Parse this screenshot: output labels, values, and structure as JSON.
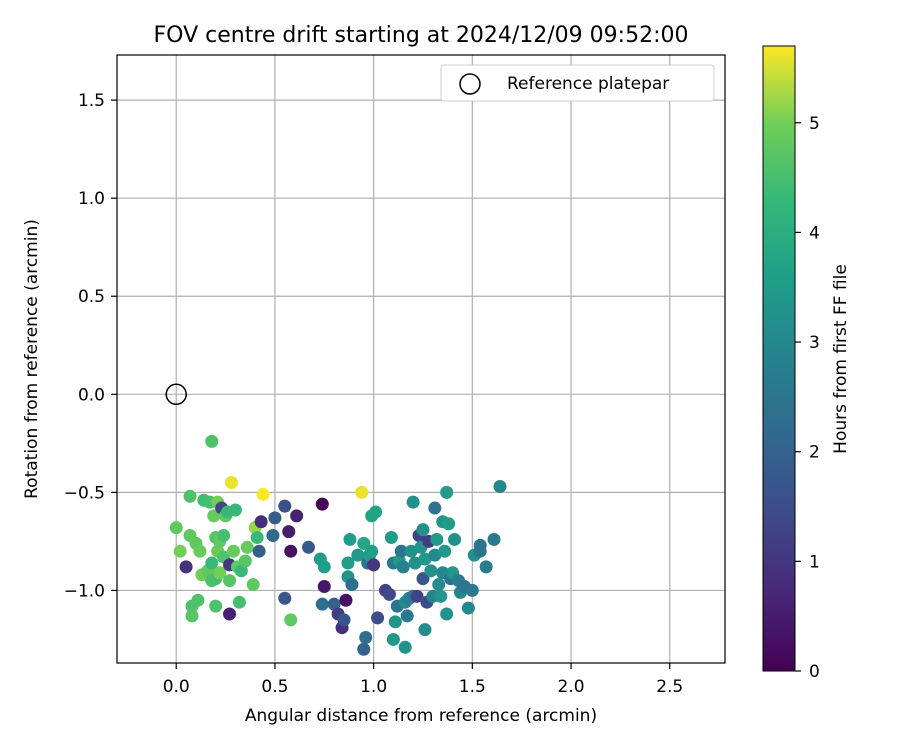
{
  "chart_data": {
    "type": "scatter",
    "title": "FOV centre drift starting at 2024/12/09 09:52:00",
    "xlabel": "Angular distance from reference (arcmin)",
    "ylabel": "Rotation from reference (arcmin)",
    "xlim": [
      -0.3,
      2.78
    ],
    "ylim": [
      -1.37,
      1.73
    ],
    "xticks": [
      0.0,
      0.5,
      1.0,
      1.5,
      2.0,
      2.5
    ],
    "xtick_labels": [
      "0.0",
      "0.5",
      "1.0",
      "1.5",
      "2.0",
      "2.5"
    ],
    "yticks": [
      -1.0,
      -0.5,
      0.0,
      0.5,
      1.0,
      1.5
    ],
    "ytick_labels": [
      "−1.0",
      "−0.5",
      "0.0",
      "0.5",
      "1.0",
      "1.5"
    ],
    "grid": true,
    "legend": {
      "placement": "top-right",
      "entries": [
        "Reference platepar"
      ]
    },
    "reference_point": {
      "x": 0.0,
      "y": 0.0,
      "marker": "open-circle"
    },
    "colorbar": {
      "label": "Hours from first FF file",
      "colormap": "viridis",
      "range": [
        0,
        5.7
      ],
      "ticks": [
        0,
        1,
        2,
        3,
        4,
        5
      ],
      "tick_labels": [
        "0",
        "1",
        "2",
        "3",
        "4",
        "5"
      ]
    },
    "points_xyc": [
      [
        0.0,
        -0.68,
        4.8
      ],
      [
        0.02,
        -0.8,
        5.0
      ],
      [
        0.05,
        -0.88,
        0.9
      ],
      [
        0.07,
        -0.52,
        4.6
      ],
      [
        0.07,
        -0.72,
        4.8
      ],
      [
        0.08,
        -1.08,
        4.6
      ],
      [
        0.08,
        -1.13,
        4.7
      ],
      [
        0.1,
        -0.76,
        4.8
      ],
      [
        0.11,
        -1.05,
        4.6
      ],
      [
        0.12,
        -0.8,
        4.9
      ],
      [
        0.13,
        -0.92,
        5.0
      ],
      [
        0.14,
        -0.54,
        4.4
      ],
      [
        0.16,
        -0.9,
        4.8
      ],
      [
        0.17,
        -0.55,
        4.5
      ],
      [
        0.18,
        -0.95,
        4.6
      ],
      [
        0.18,
        -0.86,
        4.3
      ],
      [
        0.18,
        -0.24,
        4.6
      ],
      [
        0.19,
        -0.62,
        4.9
      ],
      [
        0.2,
        -1.08,
        4.6
      ],
      [
        0.2,
        -0.73,
        4.7
      ],
      [
        0.2,
        -0.94,
        4.5
      ],
      [
        0.21,
        -0.55,
        5.0
      ],
      [
        0.21,
        -0.8,
        4.9
      ],
      [
        0.22,
        -0.91,
        5.0
      ],
      [
        0.22,
        -0.75,
        4.8
      ],
      [
        0.23,
        -0.58,
        1.4
      ],
      [
        0.24,
        -0.83,
        4.6
      ],
      [
        0.24,
        -0.72,
        4.5
      ],
      [
        0.25,
        -0.62,
        4.8
      ],
      [
        0.26,
        -0.6,
        4.3
      ],
      [
        0.27,
        -0.95,
        4.7
      ],
      [
        0.27,
        -0.87,
        1.0
      ],
      [
        0.27,
        -1.12,
        0.6
      ],
      [
        0.28,
        -0.45,
        5.6
      ],
      [
        0.29,
        -0.8,
        4.9
      ],
      [
        0.3,
        -0.59,
        4.3
      ],
      [
        0.31,
        -0.88,
        4.8
      ],
      [
        0.32,
        -1.06,
        4.5
      ],
      [
        0.33,
        -0.9,
        4.3
      ],
      [
        0.35,
        -0.85,
        4.7
      ],
      [
        0.36,
        -0.78,
        4.9
      ],
      [
        0.39,
        -0.97,
        4.8
      ],
      [
        0.4,
        -0.68,
        5.2
      ],
      [
        0.41,
        -0.73,
        4.3
      ],
      [
        0.42,
        -0.8,
        2.0
      ],
      [
        0.43,
        -0.65,
        0.8
      ],
      [
        0.44,
        -0.51,
        5.7
      ],
      [
        0.49,
        -0.72,
        2.2
      ],
      [
        0.5,
        -0.63,
        1.9
      ],
      [
        0.55,
        -0.57,
        1.6
      ],
      [
        0.55,
        -1.04,
        1.7
      ],
      [
        0.57,
        -0.7,
        0.5
      ],
      [
        0.58,
        -0.8,
        0.3
      ],
      [
        0.58,
        -1.15,
        4.8
      ],
      [
        0.61,
        -0.62,
        0.6
      ],
      [
        0.67,
        -0.78,
        1.8
      ],
      [
        0.73,
        -0.84,
        3.5
      ],
      [
        0.74,
        -0.56,
        0.1
      ],
      [
        0.74,
        -1.07,
        2.3
      ],
      [
        0.75,
        -0.98,
        0.4
      ],
      [
        0.75,
        -0.88,
        3.6
      ],
      [
        0.8,
        -1.07,
        2.0
      ],
      [
        0.82,
        -1.12,
        1.2
      ],
      [
        0.84,
        -1.19,
        0.8
      ],
      [
        0.85,
        -1.15,
        1.7
      ],
      [
        0.86,
        -1.05,
        0.3
      ],
      [
        0.87,
        -0.93,
        3.3
      ],
      [
        0.87,
        -0.86,
        3.6
      ],
      [
        0.88,
        -0.74,
        3.6
      ],
      [
        0.89,
        -0.97,
        2.3
      ],
      [
        0.92,
        -0.82,
        3.4
      ],
      [
        0.94,
        -0.5,
        5.6
      ],
      [
        0.95,
        -0.76,
        3.8
      ],
      [
        0.95,
        -1.3,
        2.0
      ],
      [
        0.96,
        -1.24,
        2.3
      ],
      [
        0.97,
        -0.86,
        2.4
      ],
      [
        0.98,
        -0.82,
        3.6
      ],
      [
        0.99,
        -0.62,
        3.7
      ],
      [
        0.99,
        -0.8,
        3.6
      ],
      [
        1.0,
        -0.87,
        1.0
      ],
      [
        1.01,
        -0.6,
        3.7
      ],
      [
        1.02,
        -1.14,
        1.5
      ],
      [
        1.06,
        -1.0,
        1.3
      ],
      [
        1.08,
        -1.02,
        1.4
      ],
      [
        1.09,
        -0.73,
        3.5
      ],
      [
        1.1,
        -1.25,
        3.4
      ],
      [
        1.1,
        -0.86,
        2.6
      ],
      [
        1.11,
        -1.16,
        3.3
      ],
      [
        1.12,
        -1.08,
        2.5
      ],
      [
        1.13,
        -0.85,
        3.4
      ],
      [
        1.14,
        -0.8,
        2.4
      ],
      [
        1.15,
        -0.88,
        2.8
      ],
      [
        1.16,
        -1.29,
        3.3
      ],
      [
        1.16,
        -1.06,
        3.0
      ],
      [
        1.17,
        -1.13,
        2.6
      ],
      [
        1.18,
        -1.04,
        2.8
      ],
      [
        1.19,
        -0.8,
        3.2
      ],
      [
        1.2,
        -1.03,
        2.6
      ],
      [
        1.2,
        -0.55,
        3.2
      ],
      [
        1.21,
        -0.86,
        3.2
      ],
      [
        1.22,
        -1.03,
        1.3
      ],
      [
        1.23,
        -0.72,
        1.3
      ],
      [
        1.24,
        -0.78,
        3.3
      ],
      [
        1.25,
        -0.69,
        3.2
      ],
      [
        1.25,
        -0.94,
        1.7
      ],
      [
        1.26,
        -0.84,
        3.4
      ],
      [
        1.26,
        -1.2,
        3.1
      ],
      [
        1.27,
        -1.06,
        1.5
      ],
      [
        1.28,
        -0.75,
        1.2
      ],
      [
        1.29,
        -0.9,
        3.2
      ],
      [
        1.3,
        -1.03,
        2.9
      ],
      [
        1.31,
        -0.58,
        2.4
      ],
      [
        1.31,
        -0.82,
        3.0
      ],
      [
        1.32,
        -0.74,
        3.4
      ],
      [
        1.33,
        -0.97,
        3.1
      ],
      [
        1.34,
        -1.03,
        3.3
      ],
      [
        1.35,
        -0.91,
        3.0
      ],
      [
        1.35,
        -0.65,
        3.3
      ],
      [
        1.36,
        -0.8,
        3.4
      ],
      [
        1.37,
        -1.12,
        3.3
      ],
      [
        1.37,
        -0.5,
        3.5
      ],
      [
        1.38,
        -0.66,
        3.5
      ],
      [
        1.39,
        -0.94,
        2.4
      ],
      [
        1.4,
        -0.91,
        3.3
      ],
      [
        1.41,
        -0.74,
        3.2
      ],
      [
        1.43,
        -0.95,
        2.7
      ],
      [
        1.44,
        -1.01,
        2.9
      ],
      [
        1.46,
        -0.98,
        2.5
      ],
      [
        1.48,
        -1.09,
        3.0
      ],
      [
        1.5,
        -1.0,
        2.6
      ],
      [
        1.51,
        -0.82,
        3.2
      ],
      [
        1.54,
        -0.77,
        2.5
      ],
      [
        1.54,
        -0.8,
        2.5
      ],
      [
        1.57,
        -0.88,
        2.7
      ],
      [
        1.61,
        -0.74,
        2.6
      ],
      [
        1.64,
        -0.47,
        3.0
      ]
    ]
  }
}
